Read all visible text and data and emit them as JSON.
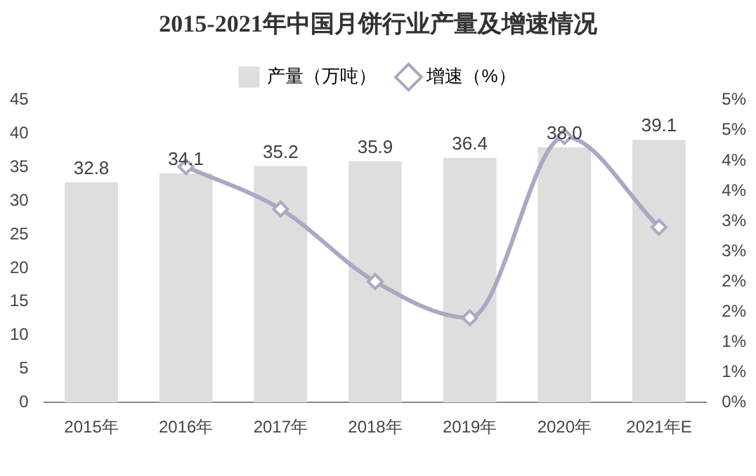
{
  "chart_data": {
    "type": "bar",
    "title": "2015-2021年中国月饼行业产量及增速情况",
    "categories": [
      "2015年",
      "2016年",
      "2017年",
      "2018年",
      "2019年",
      "2020年",
      "2021年E"
    ],
    "series": [
      {
        "name": "产量（万吨）",
        "color": "#dedede",
        "values": [
          32.8,
          34.1,
          35.2,
          35.9,
          36.4,
          38.0,
          39.1
        ],
        "value_labels": [
          "32.8",
          "34.1",
          "35.2",
          "35.9",
          "36.4",
          "38.0",
          "39.1"
        ]
      },
      {
        "name": "增速（%）",
        "type": "line",
        "axis": "y2",
        "color": "#a9a9c4",
        "marker": "diamond",
        "values": [
          null,
          3.9,
          3.2,
          2.0,
          1.4,
          4.4,
          2.9
        ]
      }
    ],
    "ylim": [
      0,
      45
    ],
    "yticks": [
      0,
      5,
      10,
      15,
      20,
      25,
      30,
      35,
      40,
      45
    ],
    "y2lim": [
      0,
      5
    ],
    "y2ticks": [
      {
        "value": 0,
        "label": "0%"
      },
      {
        "value": 0.5,
        "label": "1%"
      },
      {
        "value": 1,
        "label": "1%"
      },
      {
        "value": 1.5,
        "label": "2%"
      },
      {
        "value": 2,
        "label": "2%"
      },
      {
        "value": 2.5,
        "label": "3%"
      },
      {
        "value": 3,
        "label": "3%"
      },
      {
        "value": 3.5,
        "label": "4%"
      },
      {
        "value": 4,
        "label": "4%"
      },
      {
        "value": 4.5,
        "label": "5%"
      },
      {
        "value": 5,
        "label": "5%"
      }
    ],
    "legend": "top",
    "grid": false
  }
}
